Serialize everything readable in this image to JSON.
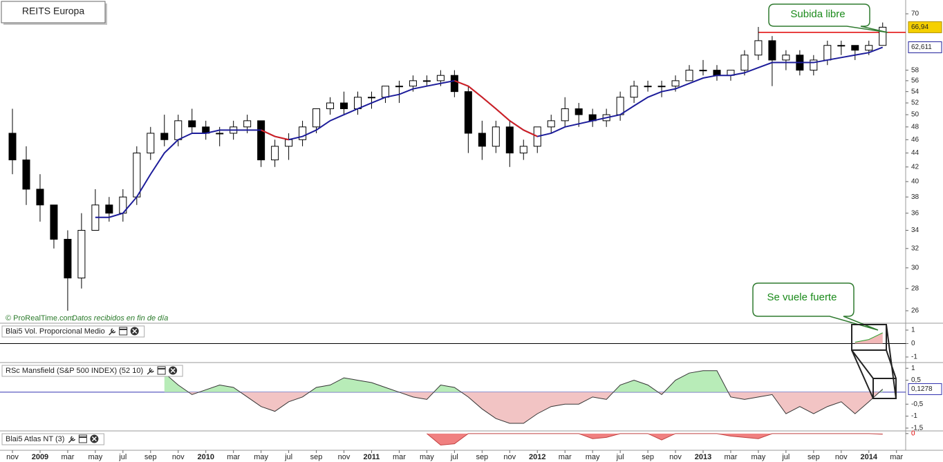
{
  "chart_data": [
    {
      "type": "candlestick",
      "title": "REITS Europa",
      "source": "© ProRealTime.com",
      "note": "Datos recibidos en fin de día",
      "x": [
        "2008-11",
        "2008-12",
        "2009-01",
        "2009-02",
        "2009-03",
        "2009-04",
        "2009-05",
        "2009-06",
        "2009-07",
        "2009-08",
        "2009-09",
        "2009-10",
        "2009-11",
        "2009-12",
        "2010-01",
        "2010-02",
        "2010-03",
        "2010-04",
        "2010-05",
        "2010-06",
        "2010-07",
        "2010-08",
        "2010-09",
        "2010-10",
        "2010-11",
        "2010-12",
        "2011-01",
        "2011-02",
        "2011-03",
        "2011-04",
        "2011-05",
        "2011-06",
        "2011-07",
        "2011-08",
        "2011-09",
        "2011-10",
        "2011-11",
        "2011-12",
        "2012-01",
        "2012-02",
        "2012-03",
        "2012-04",
        "2012-05",
        "2012-06",
        "2012-07",
        "2012-08",
        "2012-09",
        "2012-10",
        "2012-11",
        "2012-12",
        "2013-01",
        "2013-02",
        "2013-03",
        "2013-04",
        "2013-05",
        "2013-06",
        "2013-07",
        "2013-08",
        "2013-09",
        "2013-10",
        "2013-11",
        "2013-12",
        "2014-01",
        "2014-02"
      ],
      "open": [
        47,
        43,
        39,
        37,
        33,
        29,
        34,
        37,
        36,
        38,
        44,
        47,
        46,
        49,
        48,
        47,
        47,
        48,
        49,
        43,
        45,
        46,
        48,
        51,
        52,
        51,
        53,
        53,
        55,
        55,
        56,
        56,
        57,
        54,
        47,
        45,
        48,
        44,
        45,
        48,
        49,
        51,
        50,
        49,
        50,
        53,
        55,
        55,
        55,
        56,
        58,
        58,
        57,
        58,
        61,
        64,
        60,
        61,
        58,
        60,
        63,
        63,
        62,
        63
      ],
      "high": [
        51,
        45,
        41,
        37,
        34,
        36,
        39,
        38,
        39,
        45,
        48,
        50,
        50,
        51,
        49,
        48,
        49,
        50,
        49,
        46,
        47,
        49,
        51,
        53,
        54,
        54,
        54,
        55,
        56,
        57,
        57,
        58,
        58,
        55,
        49,
        49,
        49,
        46,
        48,
        50,
        53,
        52,
        51,
        51,
        54,
        56,
        56,
        56,
        57,
        59,
        60,
        59,
        58,
        62,
        67,
        65,
        62,
        62,
        61,
        64,
        64,
        63,
        64,
        68
      ],
      "low": [
        41,
        37,
        35,
        32,
        26,
        28,
        34,
        35,
        35,
        37,
        43,
        45,
        45,
        47,
        46,
        45,
        46,
        47,
        42,
        42,
        43,
        45,
        47,
        50,
        50,
        50,
        51,
        52,
        52,
        54,
        55,
        55,
        53,
        44,
        43,
        44,
        42,
        43,
        44,
        47,
        48,
        48,
        48,
        48,
        49,
        52,
        54,
        53,
        54,
        56,
        57,
        56,
        56,
        57,
        60,
        55,
        58,
        57,
        57,
        59,
        61,
        60,
        61,
        63
      ],
      "close": [
        43,
        39,
        37,
        33,
        29,
        34,
        37,
        36,
        38,
        44,
        47,
        46,
        49,
        48,
        47,
        47,
        48,
        49,
        43,
        45,
        46,
        48,
        51,
        52,
        51,
        53,
        53,
        55,
        55,
        56,
        56,
        57,
        54,
        47,
        45,
        48,
        44,
        45,
        48,
        49,
        51,
        50,
        49,
        50,
        53,
        55,
        55,
        55,
        56,
        58,
        58,
        57,
        58,
        61,
        64,
        60,
        61,
        58,
        60,
        63,
        63,
        62,
        63,
        66.94
      ],
      "close_label": "66,94",
      "color_up": "#ffffff",
      "color_down": "#000000",
      "series": [
        {
          "values": [
            null,
            null,
            null,
            null,
            null,
            null,
            35.5,
            35.5,
            36,
            38,
            41,
            44,
            46,
            47,
            47,
            47.5,
            47.5,
            47.5,
            47.5,
            46.5,
            46,
            46.5,
            47.5,
            49,
            50,
            51,
            52,
            53,
            53.5,
            54.5,
            55,
            55.5,
            56,
            55,
            53,
            51,
            49,
            47.5,
            46.5,
            47,
            48,
            48.5,
            49,
            49.5,
            50,
            51.5,
            53,
            54,
            54.5,
            55.5,
            56.5,
            57,
            57,
            57.5,
            58.5,
            59.5,
            59.5,
            59.5,
            59.5,
            60,
            60.5,
            61,
            61.5,
            62.611
          ],
          "value_label": "62,611",
          "color": "#1c1c9a",
          "down_color": "#d42020"
        }
      ],
      "hline": {
        "value": 65.8,
        "from": "2013-05",
        "color": "#e00000"
      },
      "annotations": [
        {
          "text": "Subida libre"
        },
        {
          "text": "Se vuele fuerte"
        }
      ],
      "log_scale": true,
      "ylim": [
        25,
        73.3
      ],
      "yticks": [
        26,
        28,
        30,
        32,
        34,
        36,
        38,
        40,
        42,
        44,
        46,
        48,
        50,
        52,
        54,
        56,
        58,
        70
      ],
      "xticks": [
        {
          "value": 0,
          "label": "nov"
        },
        {
          "value": 2,
          "label": "2009"
        },
        {
          "value": 4,
          "label": "mar"
        },
        {
          "value": 6,
          "label": "may"
        },
        {
          "value": 8,
          "label": "jul"
        },
        {
          "value": 10,
          "label": "sep"
        },
        {
          "value": 12,
          "label": "nov"
        },
        {
          "value": 14,
          "label": "2010"
        },
        {
          "value": 16,
          "label": "mar"
        },
        {
          "value": 18,
          "label": "may"
        },
        {
          "value": 20,
          "label": "jul"
        },
        {
          "value": 22,
          "label": "sep"
        },
        {
          "value": 24,
          "label": "nov"
        },
        {
          "value": 26,
          "label": "2011"
        },
        {
          "value": 28,
          "label": "mar"
        },
        {
          "value": 30,
          "label": "may"
        },
        {
          "value": 32,
          "label": "jul"
        },
        {
          "value": 34,
          "label": "sep"
        },
        {
          "value": 36,
          "label": "nov"
        },
        {
          "value": 38,
          "label": "2012"
        },
        {
          "value": 40,
          "label": "mar"
        },
        {
          "value": 42,
          "label": "may"
        },
        {
          "value": 44,
          "label": "jul"
        },
        {
          "value": 46,
          "label": "sep"
        },
        {
          "value": 48,
          "label": "nov"
        },
        {
          "value": 50,
          "label": "2013"
        },
        {
          "value": 52,
          "label": "mar"
        },
        {
          "value": 54,
          "label": "may"
        },
        {
          "value": 56,
          "label": "jul"
        },
        {
          "value": 58,
          "label": "sep"
        },
        {
          "value": 60,
          "label": "nov"
        },
        {
          "value": 62,
          "label": "2014"
        },
        {
          "value": 64,
          "label": "mar"
        }
      ]
    },
    {
      "type": "area",
      "title": "Blai5 Vol. Proporcional Medio",
      "values": [
        null,
        null,
        null,
        null,
        null,
        null,
        null,
        null,
        null,
        null,
        null,
        null,
        null,
        null,
        null,
        null,
        null,
        null,
        null,
        null,
        null,
        null,
        null,
        null,
        null,
        null,
        null,
        null,
        null,
        null,
        null,
        null,
        null,
        null,
        null,
        null,
        null,
        null,
        null,
        null,
        null,
        null,
        null,
        null,
        null,
        null,
        null,
        null,
        null,
        null,
        null,
        null,
        null,
        null,
        null,
        null,
        null,
        null,
        null,
        null,
        null,
        0.1,
        0.3,
        0.8
      ],
      "line_color": "#2ea02e",
      "up_fill": "#f2b8b8",
      "down_fill": "#f2b8b8",
      "zero_color": "#000000",
      "ylim": [
        -1.31,
        1.41
      ],
      "yticks": [
        1,
        0,
        -1
      ]
    },
    {
      "type": "area",
      "title": "RSc Mansfield (S&P 500 INDEX) (52 10)",
      "values": [
        null,
        null,
        null,
        null,
        null,
        null,
        null,
        null,
        null,
        null,
        null,
        0.8,
        0.3,
        -0.1,
        0.1,
        0.3,
        0.2,
        -0.2,
        -0.6,
        -0.8,
        -0.4,
        -0.2,
        0.2,
        0.3,
        0.6,
        0.5,
        0.4,
        0.2,
        0,
        -0.2,
        -0.3,
        0.3,
        0.2,
        -0.2,
        -0.7,
        -1.1,
        -1.3,
        -1.3,
        -0.9,
        -0.6,
        -0.5,
        -0.5,
        -0.2,
        -0.3,
        0.3,
        0.5,
        0.3,
        -0.1,
        0.5,
        0.8,
        0.9,
        0.9,
        -0.2,
        -0.3,
        -0.2,
        -0.1,
        -0.9,
        -0.6,
        -0.9,
        -0.6,
        -0.4,
        -0.9,
        -0.4,
        0.1278
      ],
      "value_label": "0,1278",
      "line_color": "#333333",
      "up_fill": "#b8ecb8",
      "down_fill": "#f2c4c4",
      "zero_color": "#3030b0",
      "ylim": [
        -1.56,
        1.18
      ],
      "yticks": [
        1,
        {
          "value": 0.5,
          "label": "0,5"
        },
        {
          "value": -0.5,
          "label": "-0,5"
        },
        -1,
        {
          "value": -1.5,
          "label": "-1,5"
        }
      ]
    },
    {
      "type": "area",
      "title": "Blai5 Atlas NT (3)",
      "values": [
        null,
        null,
        null,
        null,
        null,
        null,
        null,
        null,
        null,
        null,
        null,
        null,
        null,
        null,
        null,
        null,
        null,
        null,
        null,
        null,
        null,
        null,
        null,
        null,
        null,
        null,
        null,
        null,
        null,
        null,
        0,
        -0.9,
        -0.8,
        0,
        0,
        0,
        0,
        0,
        0,
        0,
        0,
        0,
        -0.4,
        -0.3,
        0,
        0,
        0,
        -0.5,
        0,
        0,
        0,
        0,
        -0.2,
        -0.3,
        -0.4,
        0,
        0,
        0,
        0,
        0,
        0,
        0,
        0,
        -0.05
      ],
      "line_color": "#c04040",
      "up_fill": "#f08080",
      "down_fill": "#f08080",
      "ylim": [
        -1.2,
        0.1
      ],
      "yticks": [
        0
      ]
    }
  ]
}
